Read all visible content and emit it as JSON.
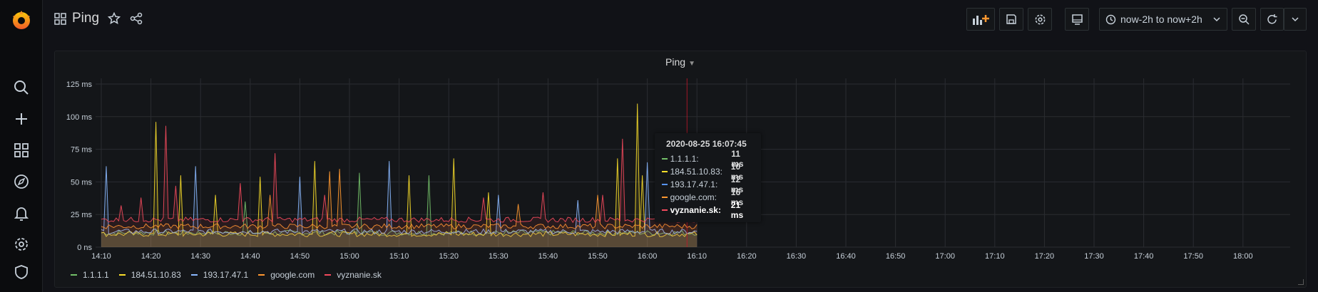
{
  "dashboard": {
    "title": "Ping"
  },
  "toolbar": {
    "time_range": "now-2h to now+2h"
  },
  "panel": {
    "title": "Ping",
    "tooltip": {
      "time": "2020-08-25 16:07:45",
      "rows": [
        {
          "name": "1.1.1.1:",
          "value": "11 ms",
          "color": "#73bf69"
        },
        {
          "name": "184.51.10.83:",
          "value": "10 ms",
          "color": "#fade2a"
        },
        {
          "name": "193.17.47.1:",
          "value": "12 ms",
          "color": "#5794f2"
        },
        {
          "name": "google.com:",
          "value": "16 ms",
          "color": "#ff9830"
        },
        {
          "name": "vyznanie.sk:",
          "value": "21 ms",
          "color": "#f2495c"
        }
      ]
    }
  },
  "chart_data": {
    "type": "line",
    "ylim": [
      0,
      125
    ],
    "y_ticks": [
      "0 ns",
      "25 ms",
      "50 ms",
      "75 ms",
      "100 ms",
      "125 ms"
    ],
    "x_ticks": [
      "14:10",
      "14:20",
      "14:30",
      "14:40",
      "14:50",
      "15:00",
      "15:10",
      "15:20",
      "15:30",
      "15:40",
      "15:50",
      "16:00",
      "16:10",
      "16:20",
      "16:30",
      "16:40",
      "16:50",
      "17:00",
      "17:10",
      "17:20",
      "17:30",
      "17:40",
      "17:50",
      "18:00"
    ],
    "x_minutes_range": [
      0,
      240
    ],
    "data_end_minute": 120,
    "cursor_minute": 118,
    "series": [
      {
        "name": "1.1.1.1",
        "color": "#73bf69",
        "baseline": 11,
        "peaks": [
          [
            29,
            35
          ],
          [
            52,
            57
          ],
          [
            66,
            55
          ],
          [
            121,
            40
          ]
        ]
      },
      {
        "name": "184.51.10.83",
        "color": "#fade2a",
        "baseline": 10,
        "peaks": [
          [
            11,
            96
          ],
          [
            16,
            55
          ],
          [
            23,
            40
          ],
          [
            32,
            54
          ],
          [
            43,
            66
          ],
          [
            62,
            55
          ],
          [
            71,
            68
          ],
          [
            78,
            42
          ],
          [
            104,
            68
          ],
          [
            108,
            110
          ],
          [
            109,
            55
          ]
        ]
      },
      {
        "name": "193.17.47.1",
        "color": "#8ab8ff",
        "baseline": 12,
        "peaks": [
          [
            1,
            62
          ],
          [
            19,
            62
          ],
          [
            40,
            54
          ],
          [
            58,
            66
          ],
          [
            80,
            40
          ],
          [
            96,
            36
          ],
          [
            110,
            65
          ]
        ]
      },
      {
        "name": "google.com",
        "color": "#ff9830",
        "baseline": 16,
        "peaks": [
          [
            34,
            40
          ],
          [
            46,
            58
          ],
          [
            48,
            60
          ],
          [
            84,
            33
          ],
          [
            100,
            40
          ]
        ]
      },
      {
        "name": "vyznanie.sk",
        "color": "#f2495c",
        "baseline": 21,
        "peaks": [
          [
            4,
            32
          ],
          [
            8,
            38
          ],
          [
            13,
            93
          ],
          [
            15,
            47
          ],
          [
            28,
            49
          ],
          [
            35,
            72
          ],
          [
            45,
            40
          ],
          [
            77,
            38
          ],
          [
            89,
            42
          ],
          [
            101,
            40
          ],
          [
            105,
            83
          ],
          [
            115,
            38
          ]
        ]
      }
    ]
  }
}
